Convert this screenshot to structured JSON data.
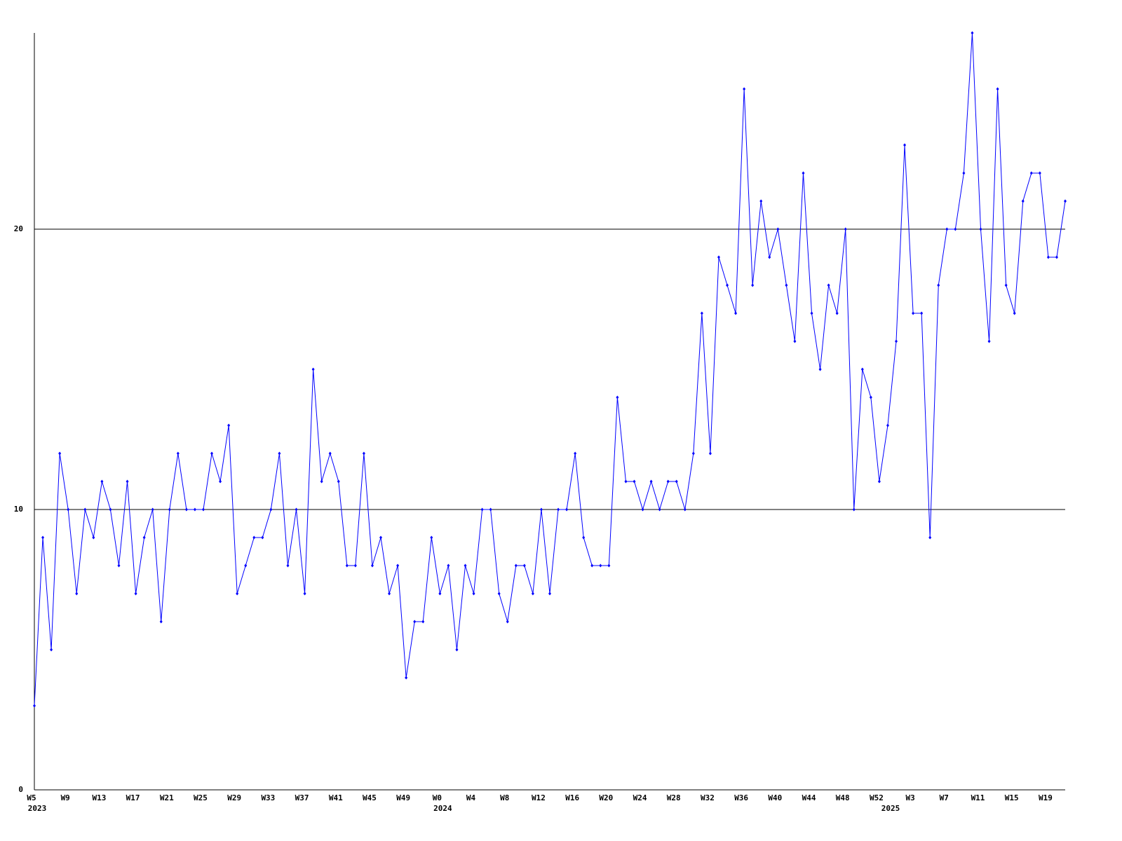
{
  "chart_data": {
    "type": "line",
    "categories": [
      "W5",
      null,
      null,
      null,
      "W9",
      null,
      null,
      null,
      "W13",
      null,
      null,
      null,
      "W17",
      null,
      null,
      null,
      "W21",
      null,
      null,
      null,
      "W25",
      null,
      null,
      null,
      "W29",
      null,
      null,
      null,
      "W33",
      null,
      null,
      null,
      "W37",
      null,
      null,
      null,
      "W41",
      null,
      null,
      null,
      "W45",
      null,
      null,
      null,
      "W49",
      null,
      null,
      null,
      "W0",
      null,
      null,
      null,
      "W4",
      null,
      null,
      null,
      "W8",
      null,
      null,
      null,
      "W12",
      null,
      null,
      null,
      "W16",
      null,
      null,
      null,
      "W20",
      null,
      null,
      null,
      "W24",
      null,
      null,
      null,
      "W28",
      null,
      null,
      null,
      "W32",
      null,
      null,
      null,
      "W36",
      null,
      null,
      null,
      "W40",
      null,
      null,
      null,
      "W44",
      null,
      null,
      null,
      "W48",
      null,
      null,
      null,
      "W52",
      null,
      null,
      null,
      "W3",
      null,
      null,
      null,
      "W7",
      null,
      null,
      null,
      "W11",
      null,
      null,
      null,
      "W15",
      null,
      null,
      null,
      "W19",
      null,
      null
    ],
    "years": [
      "2023",
      null,
      null,
      null,
      null,
      null,
      null,
      null,
      null,
      null,
      null,
      null,
      null,
      null,
      null,
      null,
      null,
      null,
      null,
      null,
      null,
      null,
      null,
      null,
      null,
      null,
      null,
      null,
      null,
      null,
      null,
      null,
      null,
      null,
      null,
      null,
      null,
      null,
      null,
      null,
      null,
      null,
      null,
      null,
      null,
      null,
      null,
      null,
      "2024",
      null,
      null,
      null,
      null,
      null,
      null,
      null,
      null,
      null,
      null,
      null,
      null,
      null,
      null,
      null,
      null,
      null,
      null,
      null,
      null,
      null,
      null,
      null,
      null,
      null,
      null,
      null,
      null,
      null,
      null,
      null,
      null,
      null,
      null,
      null,
      null,
      null,
      null,
      null,
      null,
      null,
      null,
      null,
      null,
      null,
      null,
      null,
      null,
      null,
      null,
      null,
      null,
      "2025",
      null,
      null,
      null,
      null,
      null,
      null,
      null,
      null,
      null,
      null,
      null,
      null,
      null,
      null,
      null,
      null,
      null,
      null,
      null,
      null,
      null
    ],
    "series": [
      {
        "color": "#0000ff",
        "values": [
          3,
          9,
          5,
          12,
          10,
          7,
          10,
          9,
          11,
          10,
          8,
          11,
          7,
          9,
          10,
          6,
          10,
          12,
          10,
          10,
          10,
          12,
          11,
          13,
          7,
          8,
          9,
          9,
          10,
          12,
          8,
          10,
          7,
          15,
          11,
          12,
          11,
          8,
          8,
          12,
          8,
          9,
          7,
          8,
          4,
          6,
          6,
          9,
          7,
          8,
          5,
          8,
          7,
          10,
          10,
          7,
          6,
          8,
          8,
          7,
          10,
          7,
          10,
          10,
          12,
          9,
          8,
          8,
          8,
          14,
          11,
          11,
          10,
          11,
          10,
          11,
          11,
          10,
          12,
          17,
          12,
          19,
          18,
          17,
          25,
          18,
          21,
          19,
          20,
          18,
          16,
          22,
          17,
          15,
          18,
          17,
          20,
          10,
          15,
          14,
          11,
          13,
          16,
          23,
          17,
          17,
          9,
          18,
          20,
          20,
          22,
          27,
          20,
          16,
          25,
          18,
          17,
          21,
          22,
          22,
          19,
          19,
          21
        ]
      }
    ],
    "ylim": [
      0,
      27
    ],
    "yticks": [
      0,
      10,
      20
    ],
    "grid": true
  }
}
